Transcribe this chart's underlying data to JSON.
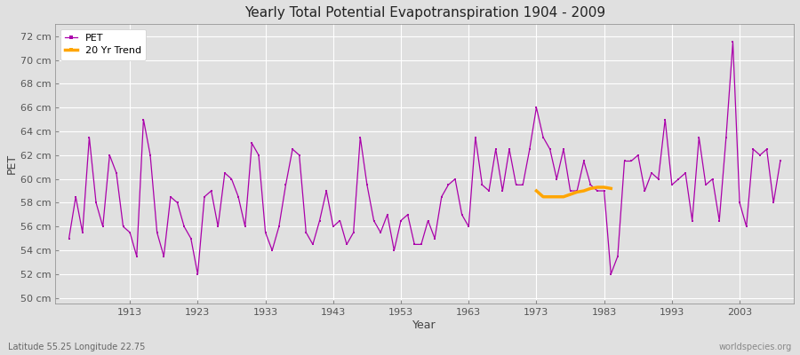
{
  "title": "Yearly Total Potential Evapotranspiration 1904 - 2009",
  "xlabel": "Year",
  "ylabel": "PET",
  "subtitle": "Latitude 55.25 Longitude 22.75",
  "watermark": "worldspecies.org",
  "ylim": [
    49.5,
    73
  ],
  "ytick_labels": [
    "50 cm",
    "52 cm",
    "54 cm",
    "56 cm",
    "58 cm",
    "60 cm",
    "62 cm",
    "64 cm",
    "66 cm",
    "68 cm",
    "70 cm",
    "72 cm"
  ],
  "ytick_values": [
    50,
    52,
    54,
    56,
    58,
    60,
    62,
    64,
    66,
    68,
    70,
    72
  ],
  "xtick_values": [
    1913,
    1923,
    1933,
    1943,
    1953,
    1963,
    1973,
    1983,
    1993,
    2003
  ],
  "pet_color": "#AA00AA",
  "trend_color": "#FFA500",
  "fig_bg_color": "#E0E0E0",
  "plot_bg_color": "#E0E0E0",
  "legend_pet": "PET",
  "legend_trend": "20 Yr Trend",
  "years": [
    1904,
    1905,
    1906,
    1907,
    1908,
    1909,
    1910,
    1911,
    1912,
    1913,
    1914,
    1915,
    1916,
    1917,
    1918,
    1919,
    1920,
    1921,
    1922,
    1923,
    1924,
    1925,
    1926,
    1927,
    1928,
    1929,
    1930,
    1931,
    1932,
    1933,
    1934,
    1935,
    1936,
    1937,
    1938,
    1939,
    1940,
    1941,
    1942,
    1943,
    1944,
    1945,
    1946,
    1947,
    1948,
    1949,
    1950,
    1951,
    1952,
    1953,
    1954,
    1955,
    1956,
    1957,
    1958,
    1959,
    1960,
    1961,
    1962,
    1963,
    1964,
    1965,
    1966,
    1967,
    1968,
    1969,
    1970,
    1971,
    1972,
    1973,
    1974,
    1975,
    1976,
    1977,
    1978,
    1979,
    1980,
    1981,
    1982,
    1983,
    1984,
    1985,
    1986,
    1987,
    1988,
    1989,
    1990,
    1991,
    1992,
    1993,
    1994,
    1995,
    1996,
    1997,
    1998,
    1999,
    2000,
    2001,
    2002,
    2003,
    2004,
    2005,
    2006,
    2007,
    2008,
    2009
  ],
  "pet_values": [
    55.0,
    58.5,
    55.5,
    63.5,
    58.0,
    56.0,
    62.0,
    60.5,
    56.0,
    55.5,
    53.5,
    65.0,
    62.0,
    55.5,
    53.5,
    58.5,
    58.0,
    56.0,
    55.0,
    52.0,
    58.5,
    59.0,
    56.0,
    60.5,
    60.0,
    58.5,
    56.0,
    63.0,
    62.0,
    55.5,
    54.0,
    56.0,
    59.5,
    62.5,
    62.0,
    55.5,
    54.5,
    56.5,
    59.0,
    56.0,
    56.5,
    54.5,
    55.5,
    63.5,
    59.5,
    56.5,
    55.5,
    57.0,
    54.0,
    56.5,
    57.0,
    54.5,
    54.5,
    56.5,
    55.0,
    58.5,
    59.5,
    60.0,
    57.0,
    56.0,
    63.5,
    59.5,
    59.0,
    62.5,
    59.0,
    62.5,
    59.5,
    59.5,
    62.5,
    66.0,
    63.5,
    62.5,
    60.0,
    62.5,
    59.0,
    59.0,
    61.5,
    59.5,
    59.0,
    59.0,
    52.0,
    53.5,
    61.5,
    61.5,
    62.0,
    59.0,
    60.5,
    60.0,
    65.0,
    59.5,
    60.0,
    60.5,
    56.5,
    63.5,
    59.5,
    60.0,
    56.5,
    63.5,
    71.5,
    58.0,
    56.0,
    62.5,
    62.0,
    62.5,
    58.0,
    61.5
  ],
  "trend_years": [
    1973,
    1974,
    1975,
    1976,
    1977,
    1978,
    1979,
    1980,
    1981,
    1982,
    1983,
    1984
  ],
  "trend_values": [
    59.0,
    58.5,
    58.5,
    58.5,
    58.5,
    58.7,
    58.9,
    59.0,
    59.2,
    59.3,
    59.3,
    59.2
  ],
  "xlim": [
    1902,
    2011
  ],
  "figsize": [
    9.0,
    4.0
  ],
  "dpi": 100
}
